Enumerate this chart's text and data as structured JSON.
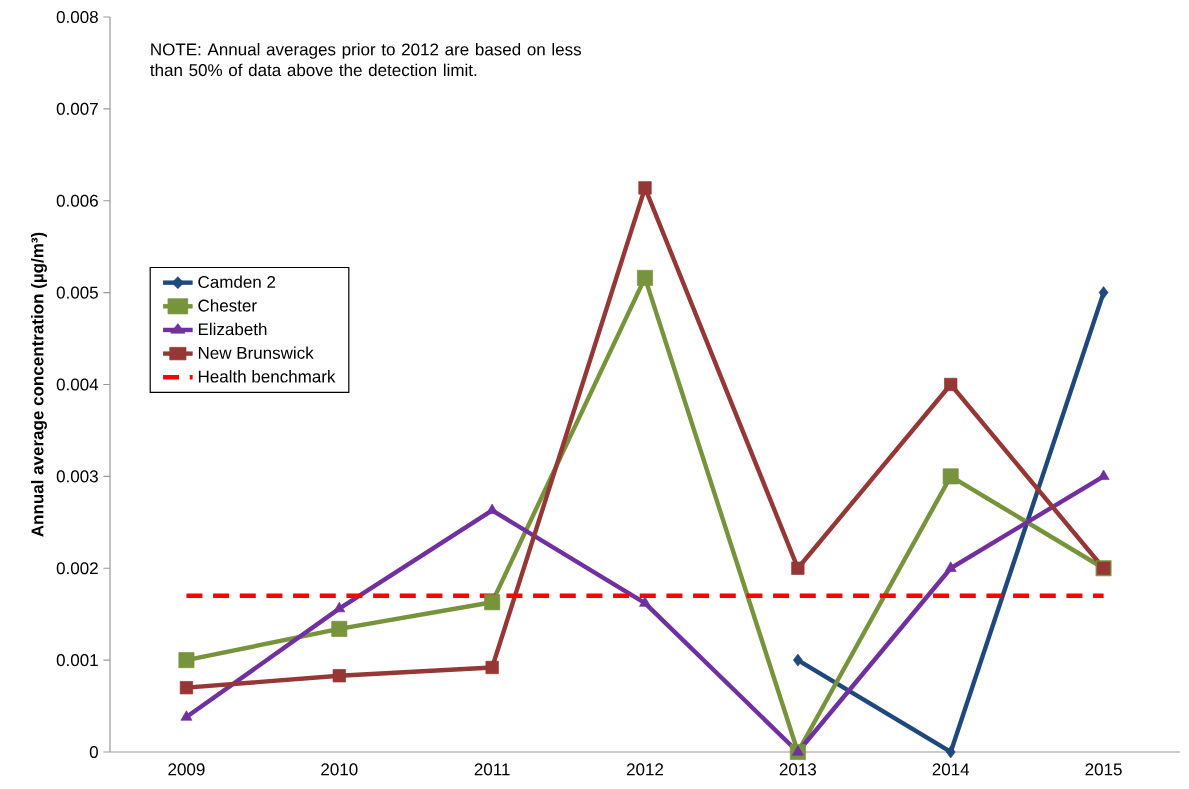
{
  "chart_data": {
    "type": "line",
    "ylabel": "Annual average concentration (µg/m³)",
    "categories": [
      "2009",
      "2010",
      "2011",
      "2012",
      "2013",
      "2014",
      "2015"
    ],
    "ylim": [
      0,
      0.008
    ],
    "yticks": [
      0,
      0.001,
      0.002,
      0.003,
      0.004,
      0.005,
      0.006,
      0.007,
      0.008
    ],
    "legend": "left",
    "annotations": [
      "NOTE:  Annual averages  prior to 2012 are based on less than 50% of data above the detection limit."
    ],
    "series": [
      {
        "name": "Camden 2",
        "color": "#1f497d",
        "marker": "diamond",
        "line_style": "solid",
        "values": [
          null,
          null,
          null,
          null,
          0.001,
          0,
          0.005
        ]
      },
      {
        "name": "Chester",
        "color": "#77933c",
        "marker": "square",
        "line_style": "solid",
        "values": [
          0.001,
          0.00134,
          0.00163,
          0.00516,
          0,
          0.003,
          0.002
        ]
      },
      {
        "name": "Elizabeth",
        "color": "#7030a0",
        "marker": "triangle",
        "line_style": "solid",
        "values": [
          0.00038,
          0.00156,
          0.00263,
          0.00162,
          0,
          0.002,
          0.003
        ]
      },
      {
        "name": "New Brunswick",
        "color": "#953735",
        "marker": "square",
        "line_style": "solid",
        "values": [
          0.0007,
          0.00083,
          0.00092,
          0.00614,
          0.002,
          0.004,
          0.002
        ]
      },
      {
        "name": "Health benchmark",
        "color": "#ff0000",
        "marker": "none",
        "line_style": "dashed",
        "values": [
          0.0017,
          0.0017,
          0.0017,
          0.0017,
          0.0017,
          0.0017,
          0.0017
        ]
      }
    ]
  }
}
